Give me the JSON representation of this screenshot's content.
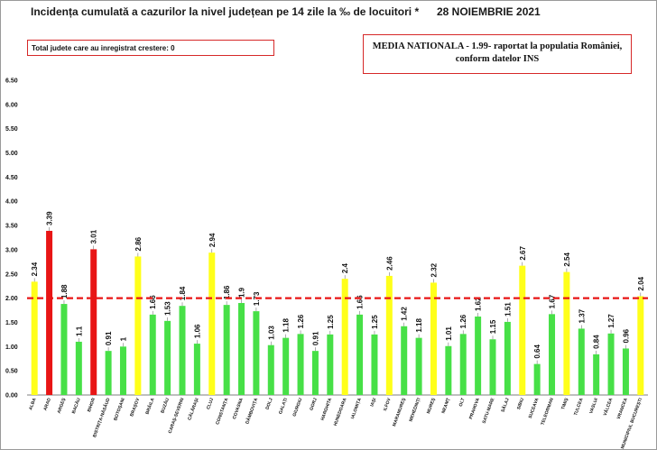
{
  "header": {
    "title": "Incidența cumulată a cazurilor la nivel județean pe 14 zile la ‰ de locuitori *",
    "date": "28 NOIEMBRIE 2021"
  },
  "boxes": {
    "left_text": "Total judete care au inregistrat crestere: 0",
    "right_line1": "MEDIA NATIONALA - 1.99-  raportat la populatia României,",
    "right_line2": "conform datelor INS"
  },
  "colors": {
    "green": "#47e047",
    "yellow": "#ffff1a",
    "red": "#e81515",
    "reference_line": "#e81515"
  },
  "chart_data": {
    "type": "bar",
    "ylim": [
      0,
      6.5
    ],
    "yticks": [
      "0.00",
      "0.50",
      "1.00",
      "1.50",
      "2.00",
      "2.50",
      "3.00",
      "3.50",
      "4.00",
      "4.50",
      "5.00",
      "5.50",
      "6.00",
      "6.50"
    ],
    "reference_line": 2.0,
    "grid": false,
    "categories": [
      "ALBA",
      "ARAD",
      "ARGEȘ",
      "BACĂU",
      "BIHOR",
      "BISTRIȚA-NĂSĂUD",
      "BOTOȘANI",
      "BRAȘOV",
      "BRĂILA",
      "BUZĂU",
      "CARAȘ-SEVERIN",
      "CĂLĂRAȘI",
      "CLUJ",
      "CONSTANȚA",
      "COVASNA",
      "DÂMBOVIȚA",
      "DOLJ",
      "GALAȚI",
      "GIURGIU",
      "GORJ",
      "HARGHITA",
      "HUNEDOARA",
      "IALOMIȚA",
      "IAȘI",
      "ILFOV",
      "MARAMUREȘ",
      "MEHEDINȚI",
      "MUREȘ",
      "NEAMȚ",
      "OLT",
      "PRAHOVA",
      "SATU-MARE",
      "SĂLAJ",
      "SIBIU",
      "SUCEAVA",
      "TELEORMAN",
      "TIMIȘ",
      "TULCEA",
      "VASLUI",
      "VÂLCEA",
      "VRANCEA",
      "MUNICIPIUL BUCUREȘTI"
    ],
    "values": [
      2.34,
      3.39,
      1.88,
      1.1,
      3.01,
      0.91,
      1,
      2.86,
      1.66,
      1.53,
      1.84,
      1.06,
      2.94,
      1.86,
      1.9,
      1.73,
      1.03,
      1.18,
      1.26,
      0.91,
      1.25,
      2.4,
      1.66,
      1.25,
      2.46,
      1.42,
      1.18,
      2.32,
      1.01,
      1.26,
      1.62,
      1.15,
      1.51,
      2.67,
      0.64,
      1.67,
      2.54,
      1.37,
      0.84,
      1.27,
      0.96,
      2.04
    ],
    "value_labels": [
      "2.34",
      "3.39",
      "1.88",
      "1.1",
      "3.01",
      "0.91",
      "1",
      "2.86",
      "1.66",
      "1.53",
      "1.84",
      "1.06",
      "2.94",
      "1.86",
      "1.9",
      "1.73",
      "1.03",
      "1.18",
      "1.26",
      "0.91",
      "1.25",
      "2.4",
      "1.66",
      "1.25",
      "2.46",
      "1.42",
      "1.18",
      "2.32",
      "1.01",
      "1.26",
      "1.62",
      "1.15",
      "1.51",
      "2.67",
      "0.64",
      "1.67",
      "2.54",
      "1.37",
      "0.84",
      "1.27",
      "0.96",
      "2.04"
    ]
  }
}
